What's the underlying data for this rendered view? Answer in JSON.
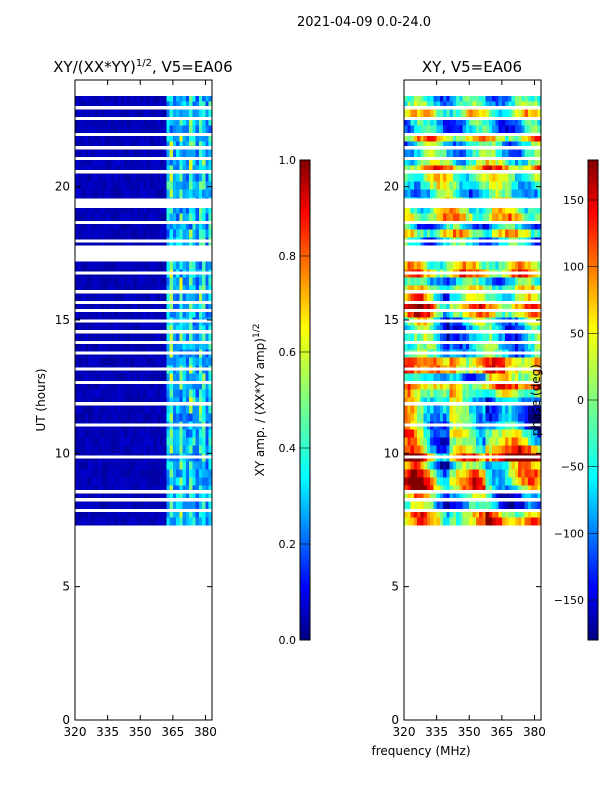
{
  "suptitle": "2021-04-09 0.0-24.0",
  "colors": {
    "jet": [
      "#000080",
      "#0000ff",
      "#0080ff",
      "#00ffff",
      "#80ff80",
      "#ffff00",
      "#ff8000",
      "#ff0000",
      "#800000"
    ],
    "background": "#ffffff",
    "axis": "#000000"
  },
  "chart_data": [
    {
      "type": "heatmap",
      "title": "XY/(XX*YY)^1/2, V5=EA06",
      "title_main": "XY/(XX*YY)",
      "title_sup": "1/2",
      "title_rest": ", V5=EA06",
      "xlabel": "",
      "ylabel": "UT (hours)",
      "xlim": [
        320,
        383
      ],
      "ylim": [
        0,
        24
      ],
      "xticks": [
        320,
        335,
        350,
        365,
        380
      ],
      "xtick_labels": [
        "320",
        "335",
        "350",
        "365",
        "380"
      ],
      "yticks": [
        0,
        5,
        10,
        15,
        20
      ],
      "ytick_labels": [
        "0",
        "5",
        "10",
        "15",
        "20"
      ],
      "data_extent_hours": [
        7.3,
        23.4
      ],
      "colorbar": {
        "label": "XY amp. / (XX*YY amp)^1/2",
        "label_main": "XY amp. / (XX*YY amp)",
        "label_sup": "1/2",
        "range": [
          0.0,
          1.0
        ],
        "ticks": [
          0.0,
          0.2,
          0.4,
          0.6,
          0.8,
          1.0
        ],
        "tick_labels": [
          "0.0",
          "0.2",
          "0.4",
          "0.6",
          "0.8",
          "1.0"
        ]
      }
    },
    {
      "type": "heatmap",
      "title": "XY, V5=EA06",
      "xlabel": "frequency (MHz)",
      "ylabel": "",
      "xlim": [
        320,
        383
      ],
      "ylim": [
        0,
        24
      ],
      "xticks": [
        320,
        335,
        350,
        365,
        380
      ],
      "xtick_labels": [
        "320",
        "335",
        "350",
        "365",
        "380"
      ],
      "yticks": [
        0,
        5,
        10,
        15,
        20
      ],
      "ytick_labels": [
        "0",
        "5",
        "10",
        "15",
        "20"
      ],
      "data_extent_hours": [
        7.3,
        23.4
      ],
      "colorbar": {
        "label": "phase (deg)",
        "range": [
          -180,
          180
        ],
        "ticks": [
          -150,
          -100,
          -50,
          0,
          50,
          100,
          150
        ],
        "tick_labels": [
          "−150",
          "−100",
          "−50",
          "0",
          "50",
          "100",
          "150"
        ]
      }
    }
  ]
}
